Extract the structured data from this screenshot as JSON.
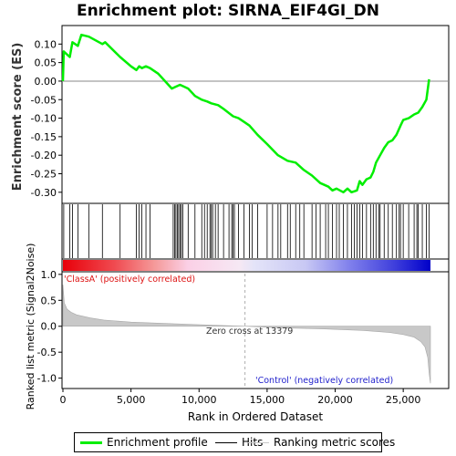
{
  "title": "Enrichment plot: SIRNA_EIF4GI_DN",
  "legend": {
    "items": [
      {
        "label": "Enrichment profile",
        "color": "#00ee00"
      },
      {
        "label": "Hits",
        "color": "#000000"
      },
      {
        "label": "Ranking metric scores",
        "color": "#c8c8c8"
      }
    ]
  },
  "chart_data": [
    {
      "type": "line",
      "panel": "enrichment",
      "ylabel": "Enrichment score (ES)",
      "ylim": [
        -0.33,
        0.15
      ],
      "xlim": [
        0,
        27000
      ],
      "yticks": [
        "0.10",
        "0.05",
        "0.00",
        "-0.05",
        "-0.10",
        "-0.15",
        "-0.20",
        "-0.25",
        "-0.30"
      ],
      "ytick_values": [
        0.1,
        0.05,
        0.0,
        -0.05,
        -0.1,
        -0.15,
        -0.2,
        -0.25,
        -0.3
      ],
      "grid": false,
      "series": [
        {
          "color": "#00ee00",
          "x": [
            0,
            60,
            500,
            700,
            1100,
            1350,
            1900,
            2900,
            3100,
            4200,
            5000,
            5400,
            5600,
            5800,
            6100,
            6400,
            7000,
            8000,
            8300,
            8600,
            8900,
            9200,
            9700,
            10200,
            10600,
            10900,
            11400,
            11800,
            12500,
            12900,
            13300,
            13700,
            14300,
            15000,
            15800,
            16500,
            17100,
            17700,
            18300,
            18900,
            19500,
            19800,
            20100,
            20600,
            20900,
            21200,
            21600,
            21800,
            22000,
            22300,
            22600,
            22800,
            23000,
            23300,
            23600,
            23900,
            24200,
            24500,
            24800,
            25000,
            25400,
            25800,
            26100,
            26400,
            26700,
            26900
          ],
          "y": [
            0.0,
            0.08,
            0.065,
            0.105,
            0.095,
            0.125,
            0.12,
            0.1,
            0.105,
            0.065,
            0.04,
            0.03,
            0.04,
            0.035,
            0.04,
            0.035,
            0.02,
            -0.02,
            -0.015,
            -0.01,
            -0.015,
            -0.02,
            -0.04,
            -0.05,
            -0.055,
            -0.06,
            -0.065,
            -0.075,
            -0.095,
            -0.1,
            -0.11,
            -0.12,
            -0.145,
            -0.17,
            -0.2,
            -0.215,
            -0.22,
            -0.24,
            -0.255,
            -0.275,
            -0.285,
            -0.295,
            -0.29,
            -0.3,
            -0.29,
            -0.3,
            -0.295,
            -0.27,
            -0.28,
            -0.265,
            -0.26,
            -0.245,
            -0.22,
            -0.2,
            -0.18,
            -0.165,
            -0.16,
            -0.145,
            -0.12,
            -0.105,
            -0.1,
            -0.09,
            -0.085,
            -0.07,
            -0.05,
            0.005
          ]
        }
      ]
    },
    {
      "type": "scatter",
      "panel": "hits",
      "hits": [
        60,
        500,
        700,
        1100,
        1900,
        2900,
        4200,
        5400,
        5600,
        5800,
        6100,
        6400,
        8100,
        8200,
        8300,
        8400,
        8500,
        8600,
        8700,
        8800,
        9200,
        9700,
        10200,
        10400,
        10600,
        10800,
        10900,
        11000,
        11200,
        11400,
        11800,
        12200,
        12400,
        12500,
        12600,
        12900,
        13300,
        13700,
        13900,
        14300,
        15000,
        15400,
        15800,
        16000,
        16500,
        16700,
        17100,
        17400,
        17700,
        18300,
        18600,
        18900,
        19300,
        19500,
        19800,
        20100,
        20300,
        20600,
        20900,
        21200,
        21400,
        21600,
        21800,
        22000,
        22300,
        22600,
        22800,
        23000,
        23200,
        23300,
        23600,
        23900,
        24200,
        24500,
        24700,
        24800,
        25000,
        25400,
        25800,
        26000,
        26100,
        26400,
        26700,
        26900
      ]
    },
    {
      "type": "area",
      "panel": "ranking-metric",
      "ylabel": "Ranked list metric (Signal2Noise)",
      "xlabel": "Rank in Ordered Dataset",
      "ylim": [
        -1.2,
        1.05
      ],
      "xlim": [
        0,
        27000
      ],
      "yticks": [
        "1.0",
        "0.5",
        "0.0",
        "-0.5",
        "-1.0"
      ],
      "ytick_values": [
        1.0,
        0.5,
        0.0,
        -0.5,
        -1.0
      ],
      "xticks": [
        "0",
        "5,000",
        "10,000",
        "15,000",
        "20,000",
        "25,000"
      ],
      "xtick_values": [
        0,
        5000,
        10000,
        15000,
        20000,
        25000
      ],
      "x": [
        0,
        100,
        300,
        600,
        1000,
        2000,
        3000,
        5000,
        8000,
        11000,
        13379,
        16000,
        19000,
        22000,
        24000,
        25000,
        25800,
        26300,
        26600,
        26800,
        26900,
        27000
      ],
      "values": [
        0.8,
        0.45,
        0.33,
        0.27,
        0.22,
        0.16,
        0.12,
        0.08,
        0.05,
        0.02,
        0.0,
        -0.03,
        -0.05,
        -0.08,
        -0.12,
        -0.16,
        -0.21,
        -0.3,
        -0.4,
        -0.6,
        -0.9,
        -1.1
      ],
      "color": "#c8c8c8",
      "annotations": {
        "positive": "'ClassA' (positively correlated)",
        "negative": "'Control' (negatively correlated)",
        "zero_cross": "Zero cross at 13379"
      },
      "zero_cross_x": 13379
    }
  ]
}
